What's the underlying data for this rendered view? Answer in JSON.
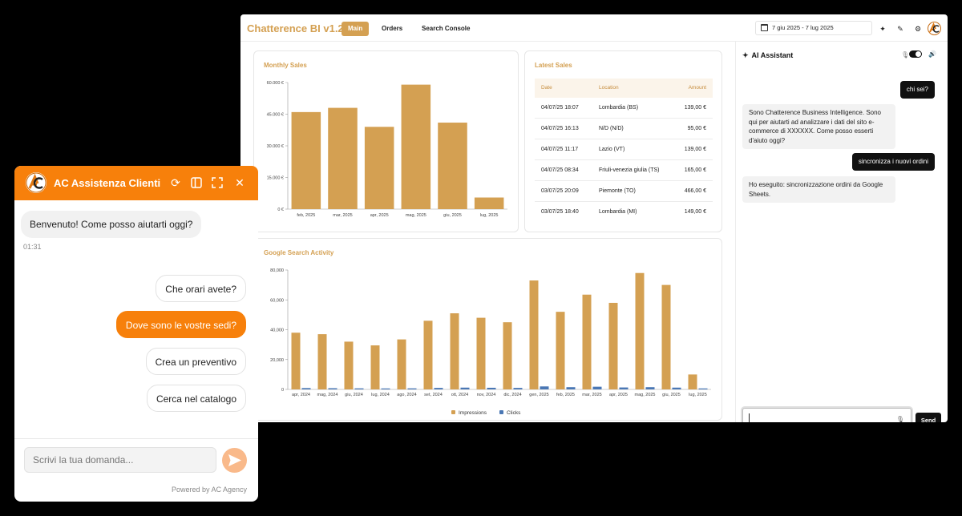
{
  "dashboard": {
    "brand": "Chatterence BI v1.2",
    "tabs": [
      {
        "label": "Main",
        "active": true
      },
      {
        "label": "Orders",
        "active": false
      },
      {
        "label": "Search Console",
        "active": false
      }
    ],
    "date_range": "7 giu 2025 - 7 lug 2025",
    "accent_color": "#d4a052",
    "icons": [
      "calendar-icon",
      "sparkle-icon",
      "edit-icon",
      "settings-icon",
      "user-logo-icon"
    ]
  },
  "monthly_sales": {
    "title": "Monthly Sales",
    "chart_data": {
      "type": "bar",
      "categories": [
        "feb, 2025",
        "mar, 2025",
        "apr, 2025",
        "mag, 2025",
        "giu, 2025",
        "lug, 2025"
      ],
      "values": [
        46000,
        48000,
        39000,
        59000,
        41000,
        5500
      ],
      "ylim": [
        0,
        60000
      ],
      "yticks": [
        "0 €",
        "15.000 €",
        "30.000 €",
        "45.000 €",
        "60.000 €"
      ],
      "color": "#d4a052"
    }
  },
  "latest_sales": {
    "title": "Latest Sales",
    "headers": [
      "Date",
      "Location",
      "Amount"
    ],
    "rows": [
      [
        "04/07/25 18:07",
        "Lombardia (BS)",
        "139,00 €"
      ],
      [
        "04/07/25 16:13",
        "N/D (N/D)",
        "95,00 €"
      ],
      [
        "04/07/25 11:17",
        "Lazio (VT)",
        "139,00 €"
      ],
      [
        "04/07/25 08:34",
        "Friuli-venezia giulia (TS)",
        "165,00 €"
      ],
      [
        "03/07/25 20:09",
        "Piemonte (TO)",
        "466,00 €"
      ],
      [
        "03/07/25 18:40",
        "Lombardia (MI)",
        "149,00 €"
      ]
    ]
  },
  "google_activity": {
    "title": "Google Search Activity",
    "chart_data": {
      "type": "bar",
      "categories": [
        "apr, 2024",
        "mag, 2024",
        "giu, 2024",
        "lug, 2024",
        "ago, 2024",
        "set, 2024",
        "ott, 2024",
        "nov, 2024",
        "dic, 2024",
        "gen, 2025",
        "feb, 2025",
        "mar, 2025",
        "apr, 2025",
        "mag, 2025",
        "giu, 2025",
        "lug, 2025"
      ],
      "series": [
        {
          "name": "Impressions",
          "color": "#d4a052",
          "values": [
            38000,
            37000,
            32000,
            29500,
            33500,
            46000,
            51000,
            48000,
            45000,
            73000,
            52000,
            63500,
            58000,
            78000,
            70000,
            10000
          ]
        },
        {
          "name": "Clicks",
          "color": "#4a77b4",
          "values": [
            900,
            800,
            700,
            600,
            700,
            1000,
            1200,
            1100,
            1000,
            2000,
            1500,
            1800,
            1300,
            1500,
            1200,
            200
          ]
        }
      ],
      "ylim": [
        0,
        80000
      ],
      "yticks": [
        "0",
        "20,000",
        "40,000",
        "60,000",
        "80,000"
      ],
      "legend": "bottom"
    }
  },
  "assistant": {
    "title": "AI Assistant",
    "messages": [
      {
        "role": "user",
        "text": "chi sei?"
      },
      {
        "role": "bot",
        "text": "Sono Chatterence Business Intelligence. Sono qui per aiutarti ad analizzare i dati del sito e-commerce di XXXXXX. Come posso esserti d'aiuto oggi?"
      },
      {
        "role": "user",
        "text": "sincronizza i nuovi ordini"
      },
      {
        "role": "bot",
        "text": "Ho eseguito: sincronizzazione ordini da Google Sheets."
      }
    ],
    "input_value": "",
    "send_label": "Send"
  },
  "widget": {
    "title": "AC Assistenza Clienti",
    "welcome": "Benvenuto! Come posso aiutarti oggi?",
    "time": "01:31",
    "options": [
      {
        "label": "Che orari avete?",
        "selected": false
      },
      {
        "label": "Dove sono le vostre sedi?",
        "selected": true
      },
      {
        "label": "Crea un preventivo",
        "selected": false
      },
      {
        "label": "Cerca nel catalogo",
        "selected": false
      }
    ],
    "input_placeholder": "Scrivi la tua domanda...",
    "powered_by": "Powered by AC Agency",
    "accent_color": "#f7800b"
  }
}
